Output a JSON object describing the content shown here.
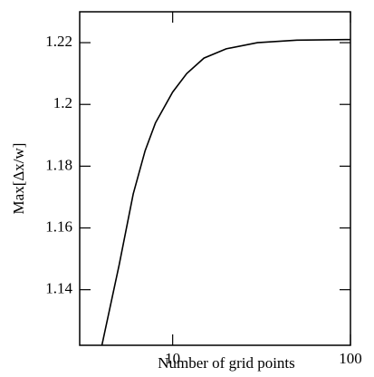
{
  "chart_data": {
    "type": "line",
    "xlabel": "Number of grid points",
    "ylabel": "Max[Δx/w]",
    "xscale": "log",
    "xlim": [
      3,
      100
    ],
    "xticks": [
      10,
      100
    ],
    "ylim": [
      1.122,
      1.23
    ],
    "yticks": [
      1.14,
      1.16,
      1.18,
      1.2,
      1.22
    ],
    "series": [
      {
        "color": "#000000",
        "x": [
          4,
          5,
          6,
          7,
          8,
          10,
          12,
          15,
          20,
          30,
          50,
          100
        ],
        "values": [
          1.122,
          1.148,
          1.171,
          1.185,
          1.194,
          1.204,
          1.21,
          1.215,
          1.218,
          1.22,
          1.2208,
          1.221
        ]
      }
    ]
  }
}
